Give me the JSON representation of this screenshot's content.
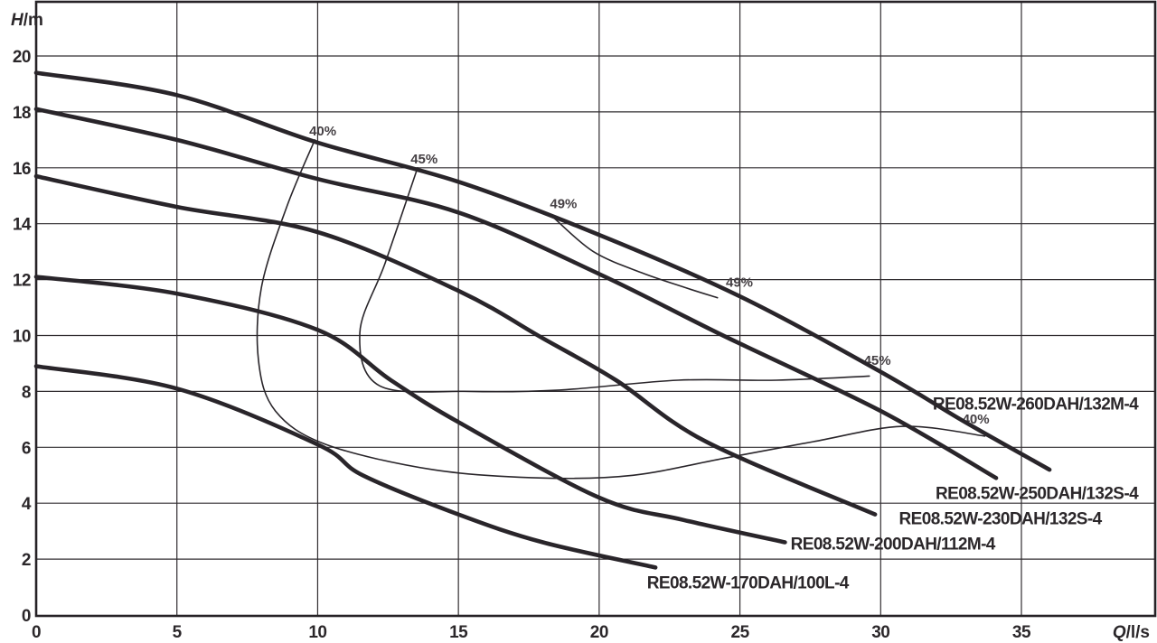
{
  "chart_data": {
    "type": "line",
    "title": "",
    "xlabel_parts": [
      "Q",
      "/l/s"
    ],
    "ylabel_parts": [
      "H",
      "/m"
    ],
    "xlim": [
      0,
      39.75
    ],
    "ylim": [
      0,
      21.95
    ],
    "grid": true,
    "x_ticks": [
      0,
      5,
      10,
      15,
      20,
      25,
      30,
      35
    ],
    "y_ticks": [
      0,
      2,
      4,
      6,
      8,
      10,
      12,
      14,
      16,
      18,
      20
    ],
    "series": [
      {
        "name": "RE08.52W-260DAH/132M-4",
        "points": [
          [
            0,
            19.4
          ],
          [
            5,
            18.6
          ],
          [
            10,
            16.9
          ],
          [
            15,
            15.5
          ],
          [
            20,
            13.6
          ],
          [
            25,
            11.4
          ],
          [
            30,
            8.7
          ],
          [
            33,
            6.9
          ],
          [
            36,
            5.2
          ]
        ],
        "label_anchor": {
          "q": 31.85,
          "h": 7.35
        }
      },
      {
        "name": "RE08.52W-250DAH/132S-4",
        "points": [
          [
            0,
            18.1
          ],
          [
            5,
            17.0
          ],
          [
            10,
            15.6
          ],
          [
            15,
            14.4
          ],
          [
            20,
            12.2
          ],
          [
            24.4,
            10.0
          ],
          [
            30,
            7.3
          ],
          [
            34.1,
            4.9
          ]
        ],
        "label_anchor": {
          "q": 31.95,
          "h": 4.15
        }
      },
      {
        "name": "RE08.52W-230DAH/132S-4",
        "points": [
          [
            0,
            15.7
          ],
          [
            5,
            14.6
          ],
          [
            10,
            13.7
          ],
          [
            15,
            11.6
          ],
          [
            18,
            9.9
          ],
          [
            20.6,
            8.4
          ],
          [
            23.8,
            6.2
          ],
          [
            29.8,
            3.6
          ]
        ],
        "label_anchor": {
          "q": 30.65,
          "h": 3.25
        }
      },
      {
        "name": "RE08.52W-200DAH/112M-4",
        "points": [
          [
            0,
            12.1
          ],
          [
            5,
            11.5
          ],
          [
            10,
            10.2
          ],
          [
            12.6,
            8.4
          ],
          [
            15,
            6.9
          ],
          [
            20,
            4.2
          ],
          [
            23,
            3.4
          ],
          [
            26.6,
            2.6
          ]
        ],
        "label_anchor": {
          "q": 26.8,
          "h": 2.35
        }
      },
      {
        "name": "RE08.52W-170DAH/100L-4",
        "points": [
          [
            0,
            8.9
          ],
          [
            5,
            8.1
          ],
          [
            10,
            6.1
          ],
          [
            11.6,
            5.0
          ],
          [
            15,
            3.6
          ],
          [
            18,
            2.6
          ],
          [
            22,
            1.7
          ]
        ],
        "label_anchor": {
          "q": 21.7,
          "h": 0.95
        }
      }
    ],
    "efficiency_contours": [
      {
        "value": "40%",
        "points": [
          [
            9.9,
            17.0
          ],
          [
            8.9,
            14.6
          ],
          [
            8.0,
            11.7
          ],
          [
            7.9,
            9.1
          ],
          [
            8.5,
            7.3
          ],
          [
            10.3,
            6.1
          ],
          [
            14.1,
            5.2
          ],
          [
            18.0,
            4.9
          ],
          [
            21.2,
            5.0
          ],
          [
            24.4,
            5.6
          ],
          [
            27.6,
            6.2
          ],
          [
            30.8,
            6.75
          ],
          [
            33.7,
            6.4
          ]
        ]
      },
      {
        "value": "45%",
        "points": [
          [
            13.55,
            16.0
          ],
          [
            12.4,
            12.6
          ],
          [
            11.5,
            10.1
          ],
          [
            12.2,
            8.2
          ],
          [
            15.4,
            8.0
          ],
          [
            18.6,
            8.05
          ],
          [
            22.8,
            8.4
          ],
          [
            26.3,
            8.4
          ],
          [
            29.6,
            8.55
          ]
        ]
      },
      {
        "value": "49%",
        "points": [
          [
            18.4,
            14.2
          ],
          [
            19.8,
            13.0
          ],
          [
            21.5,
            12.25
          ],
          [
            23.1,
            11.7
          ],
          [
            24.2,
            11.35
          ]
        ]
      }
    ],
    "contour_labels": [
      {
        "text": "40%",
        "q": 9.7,
        "h": 17.15
      },
      {
        "text": "45%",
        "q": 13.3,
        "h": 16.15
      },
      {
        "text": "49%",
        "q": 18.25,
        "h": 14.55
      },
      {
        "text": "49%",
        "q": 24.5,
        "h": 11.75
      },
      {
        "text": "45%",
        "q": 29.4,
        "h": 8.95
      },
      {
        "text": "40%",
        "q": 32.9,
        "h": 6.85
      }
    ],
    "colors": {
      "curve": "#29252a",
      "grid": "#312d30",
      "border": "#262226",
      "text": "#2b272a",
      "background": "#ffffff"
    }
  }
}
